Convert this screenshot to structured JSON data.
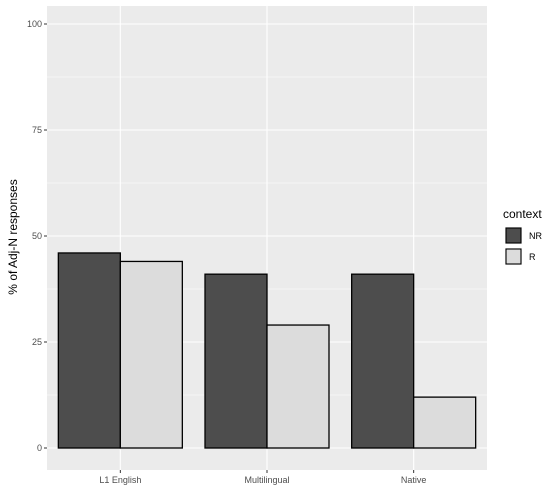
{
  "chart_data": {
    "type": "bar",
    "categories": [
      "L1 English",
      "Multilingual",
      "Native"
    ],
    "series": [
      {
        "name": "NR",
        "values": [
          46,
          41,
          41
        ],
        "color": "#4d4d4d"
      },
      {
        "name": "R",
        "values": [
          44,
          29,
          12
        ],
        "color": "#dcdcdc"
      }
    ],
    "xlabel": "",
    "ylabel": "% of Adj-N responses",
    "ylim": [
      0,
      100
    ],
    "yticks": [
      0,
      25,
      50,
      75,
      100
    ],
    "grid": true,
    "legend": {
      "title": "context",
      "placement": "right"
    },
    "colors": {
      "panel": "#ebebeb",
      "grid": "#ffffff",
      "bar_outline": "#000000"
    }
  }
}
